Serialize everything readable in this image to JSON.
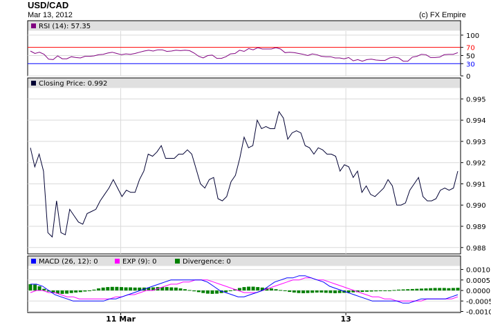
{
  "header": {
    "title": "USD/CAD",
    "date": "Mar 13, 2012",
    "credit": "(c) FX Empire"
  },
  "colors": {
    "rsi": "#800080",
    "close": "#000033",
    "macd": "#0000ff",
    "exp": "#ff00ff",
    "divergence": "#008000",
    "rsi_upper": "#ff0000",
    "rsi_lower": "#0000ff",
    "panel_header": "#e0e0e0",
    "grid": "#d9d9d9"
  },
  "chart_data": [
    {
      "type": "line",
      "panel": "rsi",
      "legend": "RSI (14): 57.35",
      "ylim": [
        0,
        110
      ],
      "yticks": [
        "100",
        "70",
        "50",
        "30",
        "0"
      ],
      "ytick_values": [
        100,
        70,
        50,
        30,
        0
      ],
      "reference_lines": [
        70,
        30
      ],
      "series": [
        {
          "name": "RSI (14)",
          "values": [
            61,
            55,
            58,
            53,
            41,
            40,
            49,
            42,
            42,
            47,
            45,
            44,
            48,
            48,
            49,
            52,
            53,
            56,
            58,
            55,
            52,
            54,
            53,
            55,
            58,
            61,
            63,
            61,
            64,
            64,
            60,
            61,
            63,
            62,
            63,
            62,
            56,
            48,
            44,
            50,
            51,
            43,
            43,
            47,
            54,
            55,
            63,
            60,
            67,
            64,
            69,
            66,
            66,
            66,
            69,
            66,
            57,
            58,
            57,
            55,
            53,
            50,
            54,
            52,
            48,
            47,
            47,
            44,
            44,
            42,
            45,
            37,
            40,
            36,
            40,
            41,
            39,
            38,
            38,
            44,
            46,
            44,
            36,
            36,
            46,
            48,
            53,
            52,
            45,
            45,
            46,
            52,
            53,
            53,
            57
          ]
        }
      ]
    },
    {
      "type": "line",
      "panel": "price",
      "legend": "Closing Price: 0.992",
      "ylim": [
        0.9877,
        0.9955
      ],
      "yticks": [
        "0.995",
        "0.994",
        "0.993",
        "0.992",
        "0.991",
        "0.990",
        "0.989",
        "0.988"
      ],
      "ytick_values": [
        0.995,
        0.994,
        0.993,
        0.992,
        0.991,
        0.99,
        0.989,
        0.988
      ],
      "series": [
        {
          "name": "Closing Price",
          "values": [
            0.9927,
            0.9918,
            0.9924,
            0.9916,
            0.9887,
            0.9885,
            0.9902,
            0.9887,
            0.9886,
            0.9898,
            0.9895,
            0.9892,
            0.9891,
            0.9896,
            0.9897,
            0.9898,
            0.9902,
            0.9905,
            0.9908,
            0.9912,
            0.9908,
            0.9904,
            0.9907,
            0.9906,
            0.9906,
            0.9912,
            0.9916,
            0.9924,
            0.9923,
            0.9925,
            0.9928,
            0.9922,
            0.9922,
            0.9922,
            0.9924,
            0.9924,
            0.9926,
            0.9924,
            0.9917,
            0.991,
            0.9908,
            0.9912,
            0.9913,
            0.9903,
            0.9902,
            0.9904,
            0.9911,
            0.9914,
            0.9922,
            0.9932,
            0.9927,
            0.9928,
            0.994,
            0.9936,
            0.9937,
            0.9936,
            0.9936,
            0.9944,
            0.9941,
            0.9931,
            0.9934,
            0.9935,
            0.9934,
            0.9928,
            0.9927,
            0.9924,
            0.9927,
            0.9926,
            0.9924,
            0.9924,
            0.9923,
            0.9916,
            0.9919,
            0.9918,
            0.9913,
            0.9916,
            0.9906,
            0.9909,
            0.9905,
            0.9904,
            0.9906,
            0.9908,
            0.9912,
            0.9909,
            0.99,
            0.99,
            0.9901,
            0.9907,
            0.991,
            0.9913,
            0.9904,
            0.9902,
            0.9902,
            0.9903,
            0.9907,
            0.9908,
            0.9907,
            0.9908,
            0.9916
          ]
        }
      ]
    },
    {
      "type": "bar",
      "panel": "macd",
      "legend": [
        {
          "label": "MACD (26, 12): 0"
        },
        {
          "label": "EXP (9): 0"
        },
        {
          "label": "Divergence: 0"
        }
      ],
      "ylim": [
        -0.00105,
        0.00115
      ],
      "yticks": [
        "0.0010",
        "0.0005",
        "0.0000",
        "-0.0005",
        "-0.0010"
      ],
      "ytick_values": [
        0.001,
        0.0005,
        0.0,
        -0.0005,
        -0.001
      ],
      "series": [
        {
          "name": "MACD (26, 12)",
          "values": [
            0.0003,
            0.0003,
            0.0002,
            0.0,
            -0.0002,
            -0.0003,
            -0.0004,
            -0.0005,
            -0.0005,
            -0.0005,
            -0.0005,
            -0.0005,
            -0.0005,
            -0.0004,
            -0.0004,
            -0.0003,
            -0.0002,
            -0.0001,
            0.0,
            0.0001,
            0.0002,
            0.0003,
            0.0004,
            0.0005,
            0.0005,
            0.0005,
            0.0005,
            0.0005,
            0.0005,
            0.0004,
            0.0002,
            0.0,
            -0.0001,
            -0.0002,
            -0.0003,
            -0.0003,
            -0.0002,
            -0.0001,
            0.0,
            0.0002,
            0.0004,
            0.0005,
            0.0006,
            0.0006,
            0.0007,
            0.0007,
            0.0006,
            0.0005,
            0.0004,
            0.0002,
            0.0001,
            0.0,
            -0.0001,
            -0.0002,
            -0.0003,
            -0.0004,
            -0.0005,
            -0.0005,
            -0.0005,
            -0.0005,
            -0.0005,
            -0.0006,
            -0.0006,
            -0.0005,
            -0.0004,
            -0.0004,
            -0.0004,
            -0.0004,
            -0.0004,
            -0.0003,
            -0.0002
          ]
        },
        {
          "name": "EXP (9)",
          "values": [
            -0.0001,
            0.0,
            0.0,
            -0.0001,
            -0.0001,
            -0.0002,
            -0.0003,
            -0.0003,
            -0.0004,
            -0.0004,
            -0.0004,
            -0.0004,
            -0.0004,
            -0.0004,
            -0.0003,
            -0.0003,
            -0.0002,
            -0.0002,
            -0.0001,
            0.0,
            0.0,
            0.0001,
            0.0002,
            0.0003,
            0.0003,
            0.0004,
            0.0004,
            0.0005,
            0.0005,
            0.0005,
            0.0004,
            0.0003,
            0.0002,
            0.0001,
            0.0,
            -0.0001,
            -0.0001,
            -0.0001,
            0.0,
            0.0001,
            0.0002,
            0.0003,
            0.0004,
            0.0005,
            0.0005,
            0.0006,
            0.0006,
            0.0005,
            0.0005,
            0.0004,
            0.0003,
            0.0002,
            0.0001,
            0.0,
            -0.0001,
            -0.0002,
            -0.0003,
            -0.0003,
            -0.0004,
            -0.0004,
            -0.0005,
            -0.0005,
            -0.0005,
            -0.0005,
            -0.0005,
            -0.0004,
            -0.0004,
            -0.0004,
            -0.0004,
            -0.0004,
            -0.0003
          ]
        },
        {
          "name": "Divergence",
          "values": [
            0.0003,
            0.00028,
            0.0002,
            8e-05,
            -5e-05,
            -0.00012,
            -0.00015,
            -0.00016,
            -0.00015,
            -0.00012,
            -0.0001,
            -8e-05,
            -5e-05,
            -2e-05,
            4e-05,
            0.0001,
            0.00014,
            0.00016,
            0.00017,
            0.00017,
            0.00016,
            0.00015,
            0.00015,
            0.00014,
            0.00014,
            0.00014,
            0.00014,
            0.00015,
            0.00016,
            0.00016,
            0.00016,
            0.00015,
            0.00014,
            0.0001,
            6e-05,
            2e-05,
            -4e-05,
            -8e-05,
            -0.00012,
            -0.00015,
            -0.00016,
            -0.00015,
            -0.00012,
            -8e-05,
            -2e-05,
            6e-05,
            0.00012,
            0.00016,
            0.00018,
            0.00018,
            0.00016,
            0.00014,
            0.00012,
            0.0001,
            6e-05,
            2e-05,
            -3e-05,
            -7e-05,
            -0.0001,
            -0.00012,
            -0.00013,
            -0.00012,
            -0.00011,
            -0.0001,
            -0.0001,
            -0.00011,
            -0.00012,
            -0.00013,
            -0.00012,
            -0.00011,
            -0.0001,
            -9e-05,
            -8e-05,
            -7e-05,
            -6e-05,
            -5e-05,
            -4e-05,
            -3e-05,
            -2e-05,
            0.0,
            2e-05,
            4e-05,
            5e-05,
            6e-05,
            7e-05,
            8e-05,
            9e-05,
            0.0001,
            0.00011,
            0.00012,
            0.00012,
            0.00012,
            0.00011,
            0.00012,
            0.00013
          ]
        }
      ]
    }
  ],
  "x_axis": {
    "labels": [
      {
        "text": "11 Mar",
        "pos": 0.215
      },
      {
        "text": "13",
        "pos": 0.735
      }
    ]
  }
}
